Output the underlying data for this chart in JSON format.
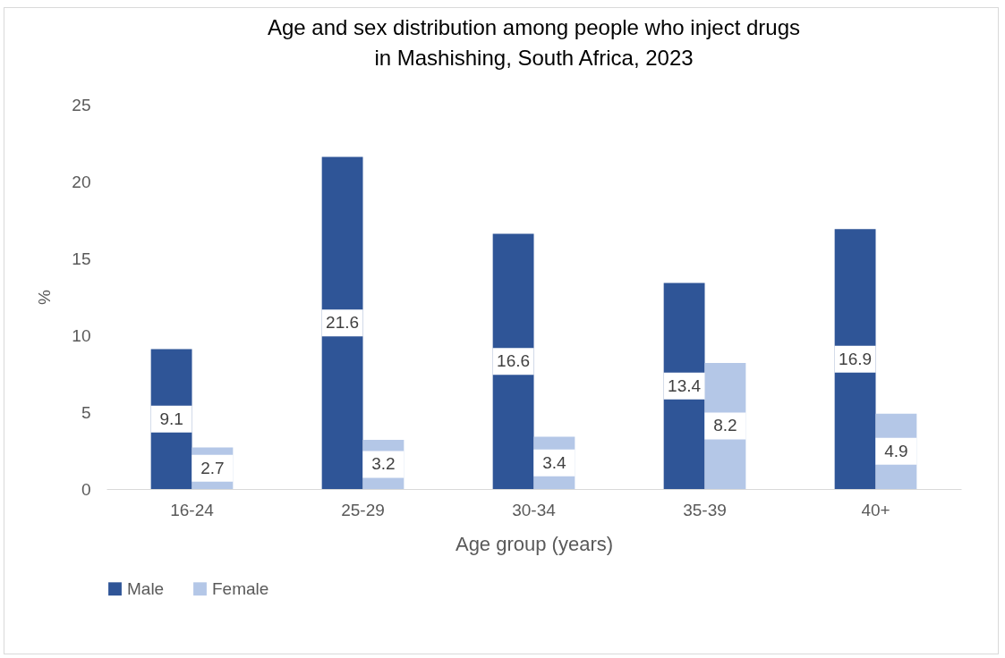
{
  "chart_data": {
    "type": "bar",
    "title": [
      "Age and sex distribution among people who inject drugs",
      "in Mashishing,  South Africa, 2023"
    ],
    "xlabel": "Age group (years)",
    "ylabel": "%",
    "categories": [
      "16-24",
      "25-29",
      "30-34",
      "35-39",
      "40+"
    ],
    "series": [
      {
        "name": "Male",
        "color": "#2f5597",
        "values": [
          9.1,
          21.6,
          16.6,
          13.4,
          16.9
        ]
      },
      {
        "name": "Female",
        "color": "#b4c7e7",
        "values": [
          2.7,
          3.2,
          3.4,
          8.2,
          4.9
        ]
      }
    ],
    "ylim": [
      0,
      25
    ],
    "yticks": [
      0,
      5,
      10,
      15,
      20,
      25
    ],
    "grid": false,
    "legend": "bottom",
    "data_labels": true
  }
}
